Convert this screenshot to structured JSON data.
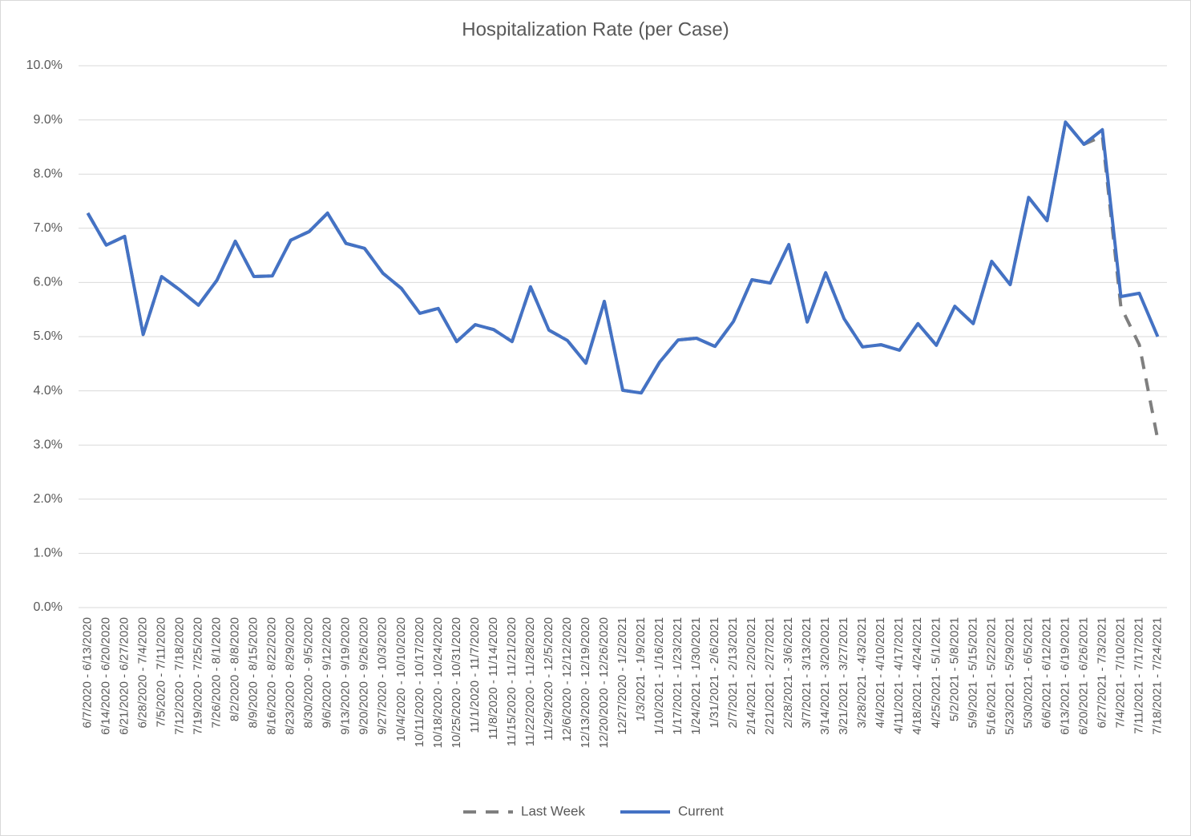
{
  "chart_data": {
    "type": "line",
    "title": "Hospitalization Rate (per Case)",
    "categories": [
      "6/7/2020 - 6/13/2020",
      "6/14/2020 - 6/20/2020",
      "6/21/2020 - 6/27/2020",
      "6/28/2020 - 7/4/2020",
      "7/5/2020 - 7/11/2020",
      "7/12/2020 - 7/18/2020",
      "7/19/2020 - 7/25/2020",
      "7/26/2020 - 8/1/2020",
      "8/2/2020 - 8/8/2020",
      "8/9/2020 - 8/15/2020",
      "8/16/2020 - 8/22/2020",
      "8/23/2020 - 8/29/2020",
      "8/30/2020 - 9/5/2020",
      "9/6/2020 - 9/12/2020",
      "9/13/2020 - 9/19/2020",
      "9/20/2020 - 9/26/2020",
      "9/27/2020 - 10/3/2020",
      "10/4/2020 - 10/10/2020",
      "10/11/2020 - 10/17/2020",
      "10/18/2020 - 10/24/2020",
      "10/25/2020 - 10/31/2020",
      "11/1/2020 - 11/7/2020",
      "11/8/2020 - 11/14/2020",
      "11/15/2020 - 11/21/2020",
      "11/22/2020 - 11/28/2020",
      "11/29/2020 - 12/5/2020",
      "12/6/2020 - 12/12/2020",
      "12/13/2020 - 12/19/2020",
      "12/20/2020 - 12/26/2020",
      "12/27/2020 - 1/2/2021",
      "1/3/2021 - 1/9/2021",
      "1/10/2021 - 1/16/2021",
      "1/17/2021 - 1/23/2021",
      "1/24/2021 - 1/30/2021",
      "1/31/2021 - 2/6/2021",
      "2/7/2021 - 2/13/2021",
      "2/14/2021 - 2/20/2021",
      "2/21/2021 - 2/27/2021",
      "2/28/2021 - 3/6/2021",
      "3/7/2021 - 3/13/2021",
      "3/14/2021 - 3/20/2021",
      "3/21/2021 - 3/27/2021",
      "3/28/2021 - 4/3/2021",
      "4/4/2021 - 4/10/2021",
      "4/11/2021 - 4/17/2021",
      "4/18/2021 - 4/24/2021",
      "4/25/2021 - 5/1/2021",
      "5/2/2021 - 5/8/2021",
      "5/9/2021 - 5/15/2021",
      "5/16/2021 - 5/22/2021",
      "5/23/2021 - 5/29/2021",
      "5/30/2021 - 6/5/2021",
      "6/6/2021 - 6/12/2021",
      "6/13/2021 - 6/19/2021",
      "6/20/2021 - 6/26/2021",
      "6/27/2021 - 7/3/2021",
      "7/4/2021 - 7/10/2021",
      "7/11/2021 - 7/17/2021",
      "7/18/2021 - 7/24/2021"
    ],
    "series": [
      {
        "name": "Last Week",
        "color": "#7f7f7f",
        "dash": true,
        "values": [
          7.28,
          6.69,
          6.85,
          5.04,
          6.11,
          5.86,
          5.58,
          6.04,
          6.76,
          6.11,
          6.12,
          6.78,
          6.94,
          7.28,
          6.72,
          6.63,
          6.17,
          5.89,
          5.43,
          5.52,
          4.91,
          5.22,
          5.13,
          4.91,
          5.92,
          5.12,
          4.93,
          4.51,
          5.65,
          4.01,
          3.96,
          4.53,
          4.94,
          4.97,
          4.82,
          5.28,
          6.05,
          5.99,
          6.7,
          5.27,
          6.18,
          5.33,
          4.81,
          4.85,
          4.75,
          5.24,
          4.84,
          5.56,
          5.24,
          6.39,
          5.96,
          7.57,
          7.14,
          8.96,
          8.55,
          8.7,
          5.55,
          4.85,
          3.1
        ]
      },
      {
        "name": "Current",
        "color": "#4472c4",
        "dash": false,
        "values": [
          7.28,
          6.69,
          6.85,
          5.04,
          6.11,
          5.86,
          5.58,
          6.04,
          6.76,
          6.11,
          6.12,
          6.78,
          6.94,
          7.28,
          6.72,
          6.63,
          6.17,
          5.89,
          5.43,
          5.52,
          4.91,
          5.22,
          5.13,
          4.91,
          5.92,
          5.12,
          4.93,
          4.51,
          5.65,
          4.01,
          3.96,
          4.53,
          4.94,
          4.97,
          4.82,
          5.28,
          6.05,
          5.99,
          6.7,
          5.27,
          6.18,
          5.33,
          4.81,
          4.85,
          4.75,
          5.24,
          4.84,
          5.56,
          5.24,
          6.39,
          5.96,
          7.57,
          7.14,
          8.96,
          8.55,
          8.82,
          5.74,
          5.8,
          5.0
        ]
      }
    ],
    "ylim": [
      0,
      10
    ],
    "yticks": [
      {
        "value": 0,
        "label": "0.0%"
      },
      {
        "value": 1,
        "label": "1.0%"
      },
      {
        "value": 2,
        "label": "2.0%"
      },
      {
        "value": 3,
        "label": "3.0%"
      },
      {
        "value": 4,
        "label": "4.0%"
      },
      {
        "value": 5,
        "label": "5.0%"
      },
      {
        "value": 6,
        "label": "6.0%"
      },
      {
        "value": 7,
        "label": "7.0%"
      },
      {
        "value": 8,
        "label": "8.0%"
      },
      {
        "value": 9,
        "label": "9.0%"
      },
      {
        "value": 10,
        "label": "10.0%"
      }
    ],
    "grid": true,
    "legend": "bottom"
  }
}
